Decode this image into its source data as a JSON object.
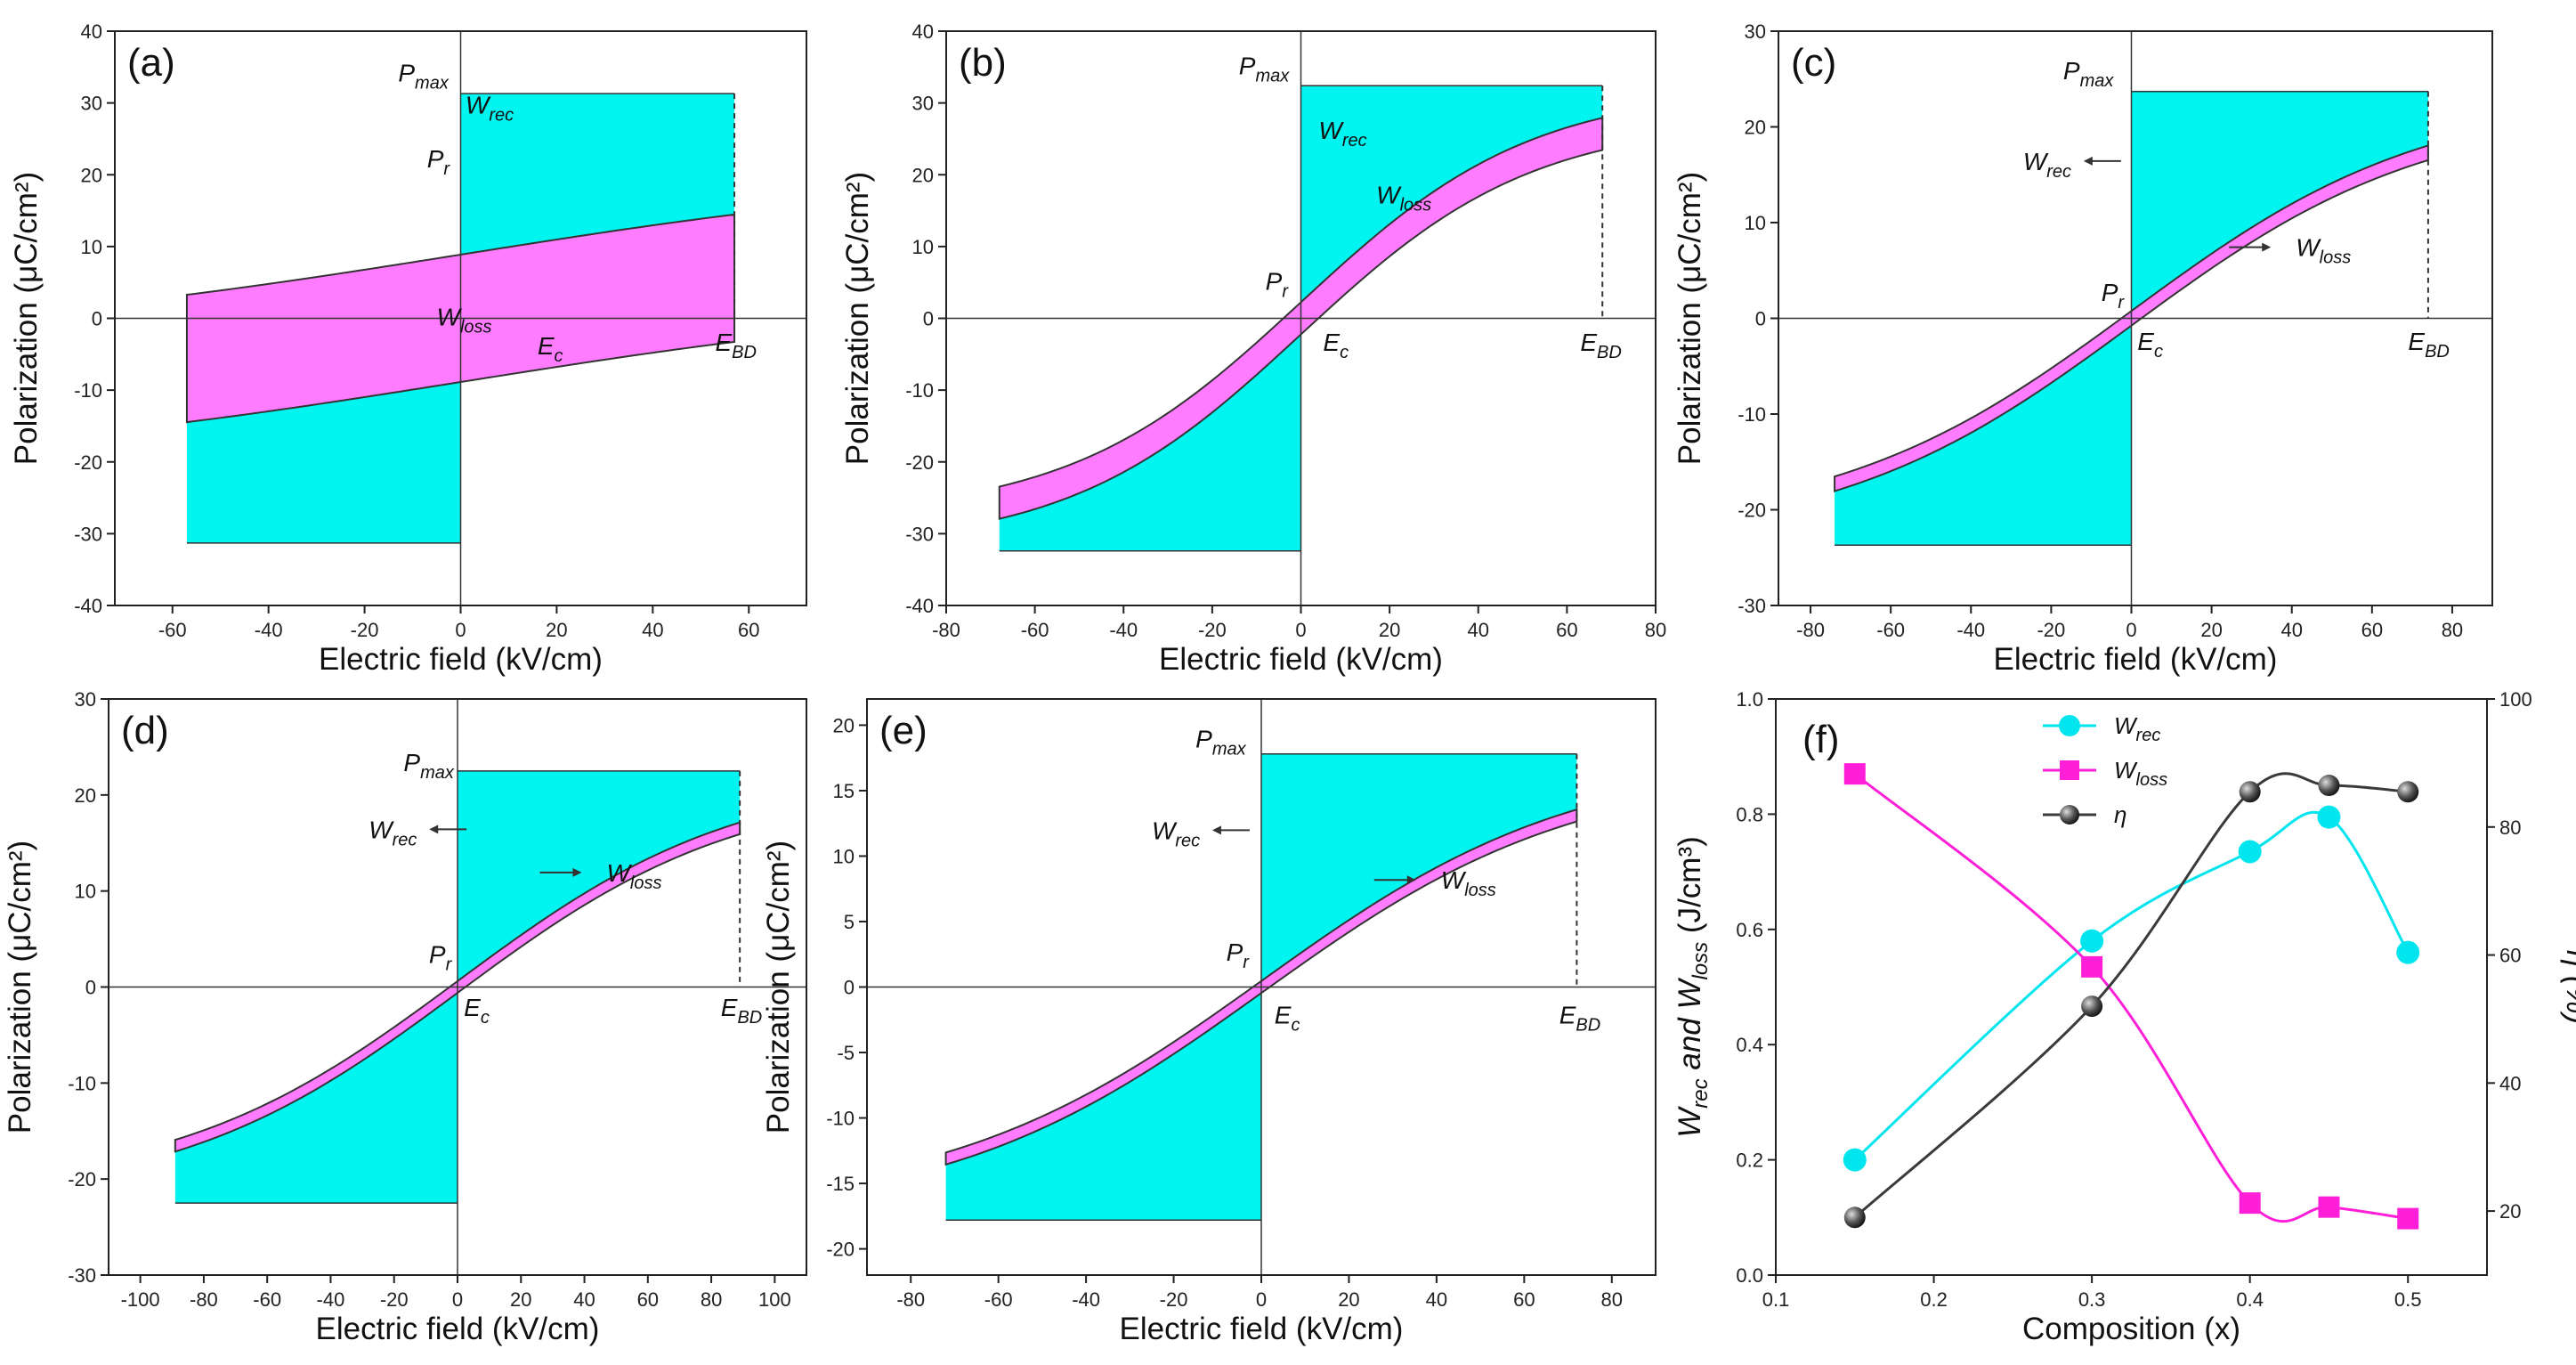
{
  "figure": {
    "panel_count": 6
  },
  "colors": {
    "wrec_fill": "#00f5f0",
    "wloss_fill": "#ff7bff",
    "curve": "#333333",
    "frame": "#222222",
    "wrec_line": "#00e5ee",
    "wloss_line": "#ff1fd8",
    "eta_line": "#3a3a3a"
  },
  "chart_data": [
    {
      "id": "a",
      "type": "area",
      "panel_label": "(a)",
      "xlabel": "Electric field (kV/cm)",
      "ylabel": "Polarization (μC/cm²)",
      "xlim": [
        -72,
        72
      ],
      "ylim": [
        -40,
        40
      ],
      "xticks": [
        -60,
        -40,
        -20,
        0,
        20,
        40,
        60
      ],
      "yticks": [
        -40,
        -30,
        -20,
        -10,
        0,
        10,
        20,
        30,
        40
      ],
      "Emax": 57,
      "Pmax": 31.3,
      "Pr": 19.2,
      "Ec": 13,
      "shape": 0.5,
      "annotations": [
        {
          "main": "P",
          "sub": "max",
          "x": -13,
          "y": 33
        },
        {
          "main": "W",
          "sub": "rec",
          "x": 1,
          "y": 28.5
        },
        {
          "main": "P",
          "sub": "r",
          "x": -7,
          "y": 21
        },
        {
          "main": "W",
          "sub": "loss",
          "x": -5,
          "y": -1
        },
        {
          "main": "E",
          "sub": "c",
          "x": 16,
          "y": -5
        },
        {
          "main": "E",
          "sub": "BD",
          "x": 53,
          "y": -4.5
        }
      ]
    },
    {
      "id": "b",
      "type": "area",
      "panel_label": "(b)",
      "xlabel": "Electric field (kV/cm)",
      "ylabel": "Polarization (μC/cm²)",
      "xlim": [
        -80,
        80
      ],
      "ylim": [
        -40,
        40
      ],
      "xticks": [
        -80,
        -60,
        -40,
        -20,
        0,
        20,
        40,
        60,
        80
      ],
      "yticks": [
        -40,
        -30,
        -20,
        -10,
        0,
        10,
        20,
        30,
        40
      ],
      "Emax": 68,
      "Pmax": 32.4,
      "Pr": 2.6,
      "Ec": 3.3,
      "shape": 1.3,
      "annotations": [
        {
          "main": "P",
          "sub": "max",
          "x": -14,
          "y": 34
        },
        {
          "main": "W",
          "sub": "rec",
          "x": 4,
          "y": 25
        },
        {
          "main": "W",
          "sub": "loss",
          "x": 17,
          "y": 16
        },
        {
          "main": "P",
          "sub": "r",
          "x": -8,
          "y": 4
        },
        {
          "main": "E",
          "sub": "c",
          "x": 5,
          "y": -4.5
        },
        {
          "main": "E",
          "sub": "BD",
          "x": 63,
          "y": -4.5
        }
      ]
    },
    {
      "id": "c",
      "type": "area",
      "panel_label": "(c)",
      "xlabel": "Electric field (kV/cm)",
      "ylabel": "Polarization (μC/cm²)",
      "xlim": [
        -88,
        90
      ],
      "ylim": [
        -30,
        30
      ],
      "xticks": [
        -80,
        -60,
        -40,
        -20,
        0,
        20,
        40,
        60,
        80
      ],
      "yticks": [
        -30,
        -20,
        -10,
        0,
        10,
        20,
        30
      ],
      "Emax": 74,
      "Pmax": 23.7,
      "Pr": 1.0,
      "Ec": 1.5,
      "shape": 1.0,
      "annotations": [
        {
          "main": "P",
          "sub": "max",
          "x": -17,
          "y": 25
        },
        {
          "main": "W",
          "sub": "rec",
          "x": -27,
          "y": 15.5,
          "arrow": "left"
        },
        {
          "main": "W",
          "sub": "loss",
          "x": 41,
          "y": 6.5,
          "arrow": "right"
        },
        {
          "main": "P",
          "sub": "r",
          "x": -7.5,
          "y": 1.8
        },
        {
          "main": "E",
          "sub": "c",
          "x": 1.5,
          "y": -3.3
        },
        {
          "main": "E",
          "sub": "BD",
          "x": 69,
          "y": -3.3
        }
      ]
    },
    {
      "id": "d",
      "type": "area",
      "panel_label": "(d)",
      "xlabel": "Electric field (kV/cm)",
      "ylabel": "Polarization (μC/cm²)",
      "xlim": [
        -110,
        110
      ],
      "ylim": [
        -30,
        30
      ],
      "xticks": [
        -100,
        -80,
        -60,
        -40,
        -20,
        0,
        20,
        40,
        60,
        80,
        100
      ],
      "yticks": [
        -30,
        -20,
        -10,
        0,
        10,
        20,
        30
      ],
      "Emax": 89,
      "Pmax": 22.5,
      "Pr": 0.8,
      "Ec": 1.0,
      "shape": 1.0,
      "annotations": [
        {
          "main": "P",
          "sub": "max",
          "x": -17,
          "y": 22.5
        },
        {
          "main": "W",
          "sub": "rec",
          "x": -28,
          "y": 15.5,
          "arrow": "left"
        },
        {
          "main": "W",
          "sub": "loss",
          "x": 47,
          "y": 11,
          "arrow": "right"
        },
        {
          "main": "P",
          "sub": "r",
          "x": -9,
          "y": 2.5
        },
        {
          "main": "E",
          "sub": "c",
          "x": 2,
          "y": -3
        },
        {
          "main": "E",
          "sub": "BD",
          "x": 83,
          "y": -3
        }
      ]
    },
    {
      "id": "e",
      "type": "area",
      "panel_label": "(e)",
      "xlabel": "Electric field (kV/cm)",
      "ylabel": "Polarization (μC/cm²)",
      "xlim": [
        -90,
        90
      ],
      "ylim": [
        -22,
        22
      ],
      "xticks": [
        -80,
        -60,
        -40,
        -20,
        0,
        20,
        40,
        60,
        80
      ],
      "yticks": [
        -20,
        -15,
        -10,
        -5,
        0,
        5,
        10,
        15,
        20
      ],
      "Emax": 72,
      "Pmax": 17.8,
      "Pr": 0.6,
      "Ec": 0.8,
      "shape": 1.0,
      "annotations": [
        {
          "main": "P",
          "sub": "max",
          "x": -15,
          "y": 18.3
        },
        {
          "main": "W",
          "sub": "rec",
          "x": -25,
          "y": 11.3,
          "arrow": "left"
        },
        {
          "main": "W",
          "sub": "loss",
          "x": 41,
          "y": 7.5,
          "arrow": "right"
        },
        {
          "main": "P",
          "sub": "r",
          "x": -8,
          "y": 2
        },
        {
          "main": "E",
          "sub": "c",
          "x": 3,
          "y": -2.8
        },
        {
          "main": "E",
          "sub": "BD",
          "x": 68,
          "y": -2.8
        }
      ]
    },
    {
      "id": "f",
      "type": "line",
      "panel_label": "(f)",
      "xlabel": "Composition (x)",
      "ylabel_left": "W_rec and W_loss (J/cm³)",
      "ylabel_right": "η (%)",
      "xlim": [
        0.1,
        0.55
      ],
      "ylim_left": [
        0,
        1.0
      ],
      "ylim_right": [
        10,
        100
      ],
      "xticks": [
        0.1,
        0.2,
        0.3,
        0.4,
        0.5
      ],
      "yticks_left": [
        0.0,
        0.2,
        0.4,
        0.6,
        0.8,
        1.0
      ],
      "yticks_right": [
        20,
        40,
        60,
        80,
        100
      ],
      "x": [
        0.15,
        0.3,
        0.4,
        0.45,
        0.5
      ],
      "series": [
        {
          "name": "W_rec",
          "label_main": "W",
          "label_sub": "rec",
          "axis": "left",
          "marker": "circle",
          "values": [
            0.2,
            0.58,
            0.735,
            0.795,
            0.56
          ]
        },
        {
          "name": "W_loss",
          "label_main": "W",
          "label_sub": "loss",
          "axis": "left",
          "marker": "square",
          "values": [
            0.87,
            0.535,
            0.125,
            0.118,
            0.098
          ]
        },
        {
          "name": "η",
          "label_main": "η",
          "label_sub": "",
          "axis": "right",
          "marker": "sphere",
          "values": [
            19,
            52,
            85.5,
            86.5,
            85.5
          ]
        }
      ]
    }
  ]
}
